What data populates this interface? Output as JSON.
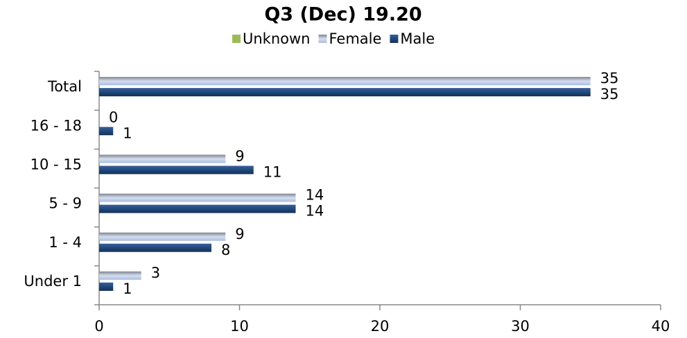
{
  "chart_data": {
    "type": "bar",
    "orientation": "horizontal",
    "title": "Q3 (Dec) 19.20",
    "categories": [
      "Total",
      "16 - 18",
      "10 - 15",
      "5 - 9",
      "1 - 4",
      "Under 1"
    ],
    "series": [
      {
        "name": "Unknown",
        "color": "#9bbb59",
        "values": [
          null,
          null,
          null,
          null,
          null,
          null
        ]
      },
      {
        "name": "Female",
        "color": "#b9cde5",
        "values": [
          35,
          0,
          9,
          14,
          9,
          3
        ]
      },
      {
        "name": "Male",
        "color": "#1f497d",
        "values": [
          35,
          1,
          11,
          14,
          8,
          1
        ]
      }
    ],
    "xlim": [
      0,
      40
    ],
    "xticks": [
      0,
      10,
      20,
      30,
      40
    ],
    "grid": false,
    "legend": "top"
  }
}
